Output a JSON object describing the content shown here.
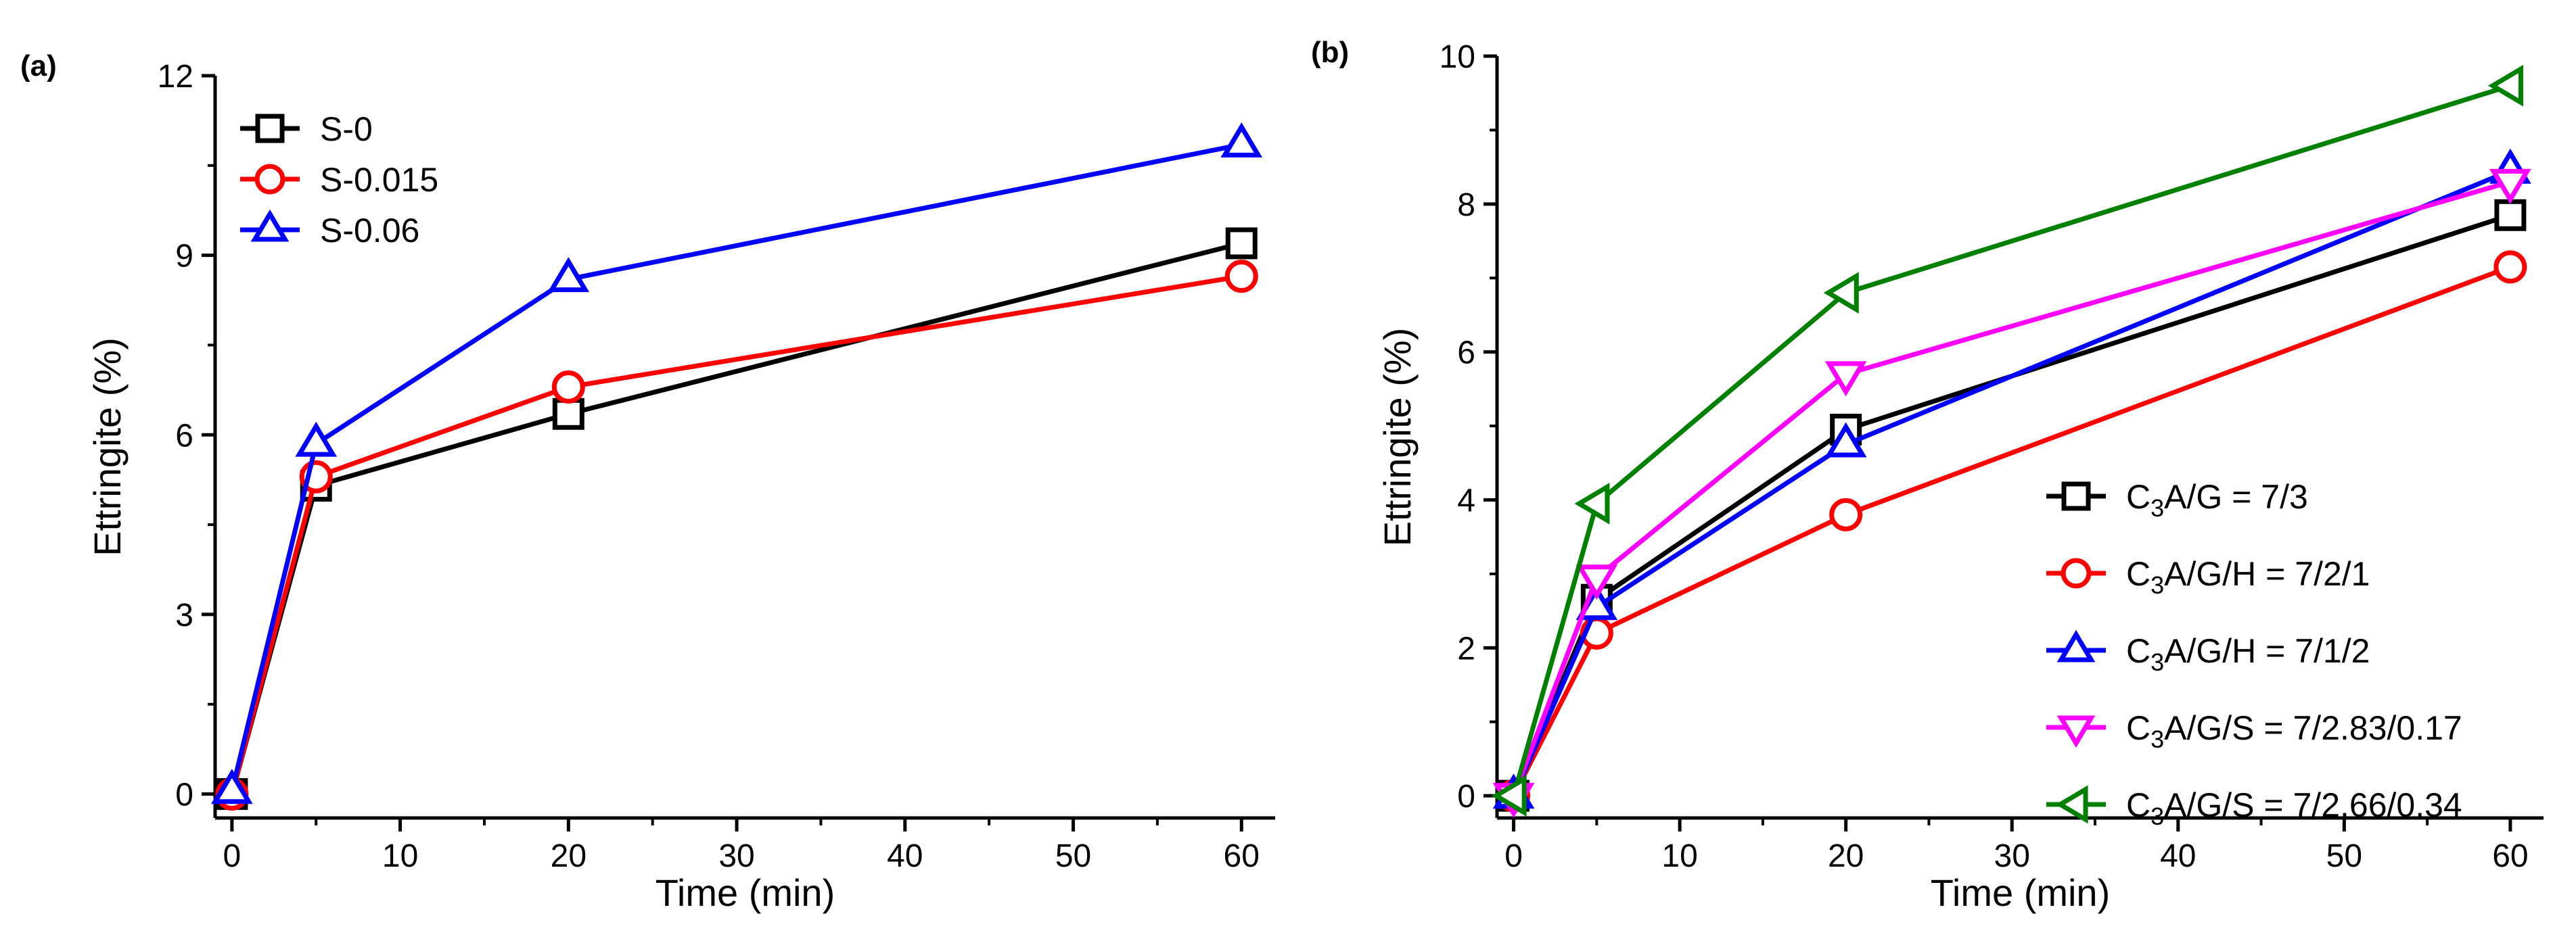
{
  "chart_data": [
    {
      "panel_label": "(a)",
      "type": "line",
      "xlabel": "Time (min)",
      "ylabel": "Ettringite (%)",
      "xlim": [
        -1,
        62
      ],
      "ylim": [
        -0.4,
        12
      ],
      "xticks": [
        0,
        10,
        20,
        30,
        40,
        50,
        60
      ],
      "yticks": [
        0,
        3,
        6,
        9,
        12
      ],
      "x": [
        0,
        5,
        20,
        60
      ],
      "legend_position": "top-left",
      "series": [
        {
          "name": "S-0",
          "color": "#000000",
          "marker": "square",
          "values": [
            0,
            5.15,
            6.35,
            9.2
          ]
        },
        {
          "name": "S-0.015",
          "color": "#ff0000",
          "marker": "circle",
          "values": [
            0,
            5.3,
            6.8,
            8.65
          ]
        },
        {
          "name": "S-0.06",
          "color": "#0000ff",
          "marker": "triangle-up",
          "values": [
            0.05,
            5.85,
            8.6,
            10.85
          ]
        }
      ]
    },
    {
      "panel_label": "(b)",
      "type": "line",
      "xlabel": "Time (min)",
      "ylabel": "Ettringite (%)",
      "xlim": [
        -1,
        62
      ],
      "ylim": [
        -0.3,
        10
      ],
      "xticks": [
        0,
        10,
        20,
        30,
        40,
        50,
        60
      ],
      "yticks": [
        0,
        2,
        4,
        6,
        8,
        10
      ],
      "x": [
        0,
        5,
        20,
        60
      ],
      "legend_position": "bottom-right",
      "series": [
        {
          "name_prefix": "C",
          "name_sub": "3",
          "name_suffix": "A/G = 7/3",
          "color": "#000000",
          "marker": "square",
          "values": [
            0,
            2.65,
            4.95,
            7.85
          ]
        },
        {
          "name_prefix": "C",
          "name_sub": "3",
          "name_suffix": "A/G/H = 7/2/1",
          "color": "#ff0000",
          "marker": "circle",
          "values": [
            0,
            2.2,
            3.8,
            7.15
          ]
        },
        {
          "name_prefix": "C",
          "name_sub": "3",
          "name_suffix": "A/G/H = 7/1/2",
          "color": "#0000ff",
          "marker": "triangle-up",
          "values": [
            0,
            2.55,
            4.75,
            8.45
          ]
        },
        {
          "name_prefix": "C",
          "name_sub": "3",
          "name_suffix": "A/G/S = 7/2.83/0.17",
          "color": "#ff00ff",
          "marker": "triangle-down",
          "values": [
            0,
            2.95,
            5.7,
            8.3
          ]
        },
        {
          "name_prefix": "C",
          "name_sub": "3",
          "name_suffix": "A/G/S = 7/2.66/0.34",
          "color": "#008000",
          "marker": "triangle-left",
          "values": [
            0,
            3.95,
            6.8,
            9.6
          ]
        }
      ]
    }
  ]
}
